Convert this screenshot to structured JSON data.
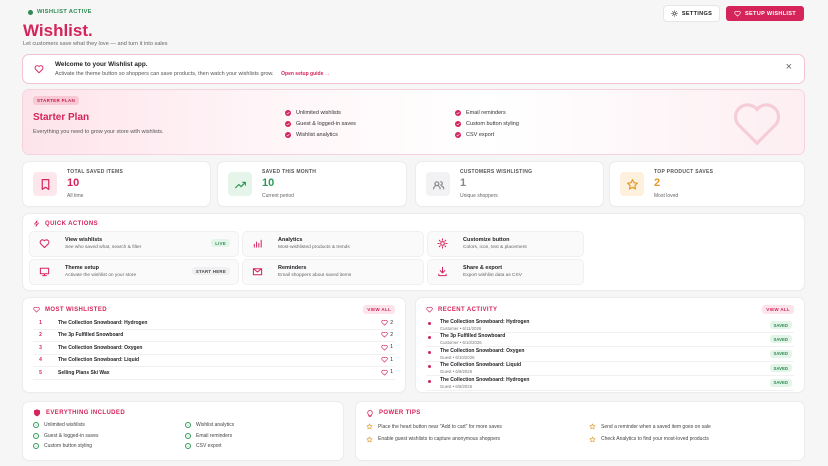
{
  "header": {
    "badge": "WISHLIST ACTIVE",
    "title": "Wishlist.",
    "subtitle": "Let customers save what they love — and turn it into sales",
    "settings": "SETTINGS",
    "setup": "SETUP WISHLIST"
  },
  "welcome": {
    "title": "Welcome to your Wishlist app.",
    "text": "Activate the theme button so shoppers can save products, then watch your wishlists grow.",
    "link": "Open setup guide →"
  },
  "plan": {
    "badge": "STARTER PLAN",
    "title": "Starter Plan",
    "description": "Everything you need to grow your store with wishlists.",
    "features": [
      "Unlimited wishlists",
      "Guest & logged-in saves",
      "Wishlist analytics",
      "Email reminders",
      "Custom button styling",
      "CSV export"
    ]
  },
  "stats": [
    {
      "label": "TOTAL SAVED ITEMS",
      "value": 10,
      "note": "All time"
    },
    {
      "label": "SAVED THIS MONTH",
      "value": 10,
      "note": "Current period"
    },
    {
      "label": "CUSTOMERS WISHLISTING",
      "value": 1,
      "note": "Unique shoppers"
    },
    {
      "label": "TOP PRODUCT SAVES",
      "value": 2,
      "note": "Most loved"
    }
  ],
  "quick_actions": {
    "title": "QUICK ACTIONS",
    "items": [
      {
        "title": "View wishlists",
        "description": "See who saved what, search & filter",
        "badge": "LIVE"
      },
      {
        "title": "Analytics",
        "description": "Most-wishlisted products & trends"
      },
      {
        "title": "Customize button",
        "description": "Colors, icon, text & placement"
      },
      {
        "title": "Theme setup",
        "description": "Activate the wishlist on your store",
        "badge": "START HERE"
      },
      {
        "title": "Reminders",
        "description": "Email shoppers about saved items"
      },
      {
        "title": "Share & export",
        "description": "Export wishlist data as CSV"
      }
    ]
  },
  "most_wishlisted": {
    "title": "MOST WISHLISTED",
    "view_all": "VIEW ALL",
    "rows": [
      {
        "rank": 1,
        "name": "The Collection Snowboard: Hydrogen",
        "count": 2
      },
      {
        "rank": 2,
        "name": "The 3p Fulfilled Snowboard",
        "count": 2
      },
      {
        "rank": 3,
        "name": "The Collection Snowboard: Oxygen",
        "count": 1
      },
      {
        "rank": 4,
        "name": "The Collection Snowboard: Liquid",
        "count": 1
      },
      {
        "rank": 5,
        "name": "Selling Plans Ski Wax",
        "count": 1
      }
    ]
  },
  "recent_activity": {
    "title": "RECENT ACTIVITY",
    "view_all": "VIEW ALL",
    "rows": [
      {
        "name": "The Collection Snowboard: Hydrogen",
        "meta": "Customer • 6/11/2026",
        "status": "SAVED"
      },
      {
        "name": "The 3p Fulfilled Snowboard",
        "meta": "Customer • 6/10/2026",
        "status": "SAVED"
      },
      {
        "name": "The Collection Snowboard: Oxygen",
        "meta": "Guest • 6/10/2026",
        "status": "SAVED"
      },
      {
        "name": "The Collection Snowboard: Liquid",
        "meta": "Guest • 6/9/2026",
        "status": "SAVED"
      },
      {
        "name": "The Collection Snowboard: Hydrogen",
        "meta": "Guest • 6/8/2026",
        "status": "SAVED"
      }
    ]
  },
  "included": {
    "title": "EVERYTHING INCLUDED",
    "items": [
      "Unlimited wishlists",
      "Guest & logged-in saves",
      "Custom button styling",
      "Wishlist analytics",
      "Email reminders",
      "CSV export"
    ]
  },
  "power_tips": {
    "title": "POWER TIPS",
    "tips": [
      "Place the heart button near \"Add to cart\" for more saves",
      "Enable guest wishlists to capture anonymous shoppers",
      "Send a reminder when a saved item goes on sale",
      "Check Analytics to find your most-loved products"
    ]
  }
}
